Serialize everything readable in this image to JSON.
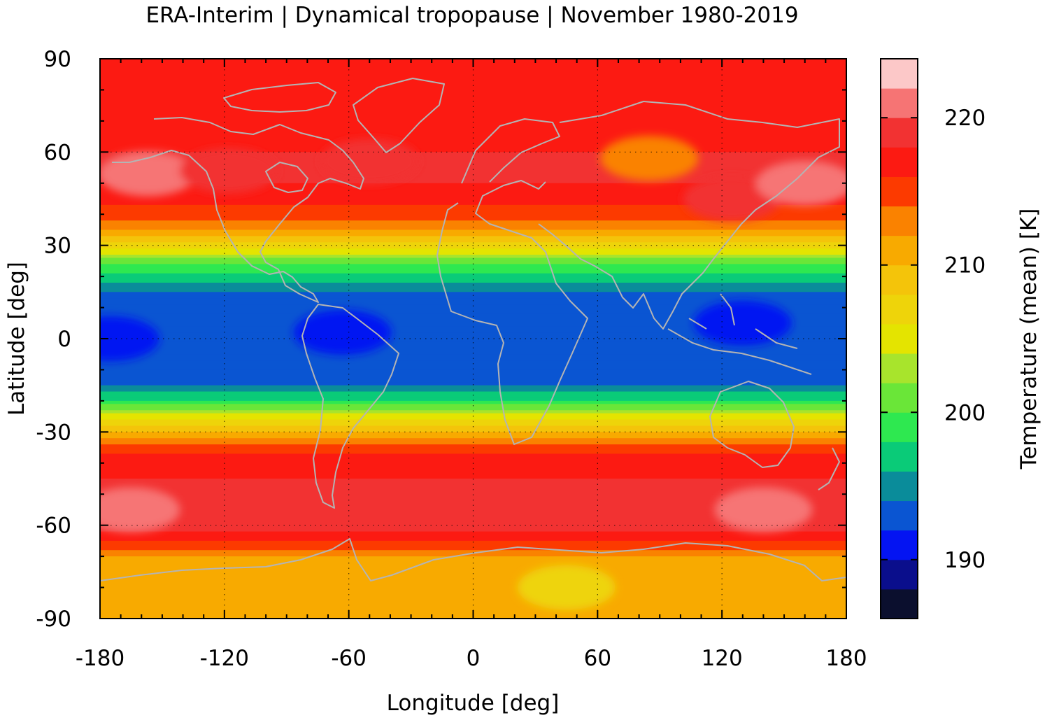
{
  "chart_data": {
    "type": "heatmap",
    "title": "ERA-Interim | Dynamical tropopause | November 1980-2019",
    "xlabel": "Longitude [deg]",
    "ylabel": "Latitude [deg]",
    "colorbar_label": "Temperature (mean) [K]",
    "xlim": [
      -180,
      180
    ],
    "ylim": [
      -90,
      90
    ],
    "x_ticks": [
      -180,
      -120,
      -60,
      0,
      60,
      120,
      180
    ],
    "y_ticks": [
      -90,
      -60,
      -30,
      0,
      30,
      60,
      90
    ],
    "x_tick_labels": [
      "-180",
      "-120",
      "-60",
      "0",
      "60",
      "120",
      "180"
    ],
    "y_tick_labels": [
      "-90",
      "-60",
      "-30",
      "0",
      "30",
      "60",
      "90"
    ],
    "grid": true,
    "coastlines": true,
    "coastline_color": "#b4b4b4",
    "colorbar": {
      "range": [
        186,
        224
      ],
      "ticks": [
        190,
        200,
        210,
        220
      ],
      "tick_labels": [
        "190",
        "200",
        "210",
        "220"
      ],
      "levels": [
        {
          "from": 186,
          "to": 188,
          "color": "#0b0f2e"
        },
        {
          "from": 188,
          "to": 190,
          "color": "#0a0e8c"
        },
        {
          "from": 190,
          "to": 192,
          "color": "#0414f2"
        },
        {
          "from": 192,
          "to": 194,
          "color": "#0a55d2"
        },
        {
          "from": 194,
          "to": 196,
          "color": "#0a8c9a"
        },
        {
          "from": 196,
          "to": 198,
          "color": "#0acb78"
        },
        {
          "from": 198,
          "to": 200,
          "color": "#2ee850"
        },
        {
          "from": 200,
          "to": 202,
          "color": "#6ae638"
        },
        {
          "from": 202,
          "to": 204,
          "color": "#a8e42c"
        },
        {
          "from": 204,
          "to": 206,
          "color": "#e4e400"
        },
        {
          "from": 206,
          "to": 208,
          "color": "#eed40a"
        },
        {
          "from": 208,
          "to": 210,
          "color": "#f4c40a"
        },
        {
          "from": 210,
          "to": 212,
          "color": "#f8aa00"
        },
        {
          "from": 212,
          "to": 214,
          "color": "#fa8200"
        },
        {
          "from": 214,
          "to": 216,
          "color": "#fc3a00"
        },
        {
          "from": 216,
          "to": 218,
          "color": "#fc1a12"
        },
        {
          "from": 218,
          "to": 220,
          "color": "#f23232"
        },
        {
          "from": 220,
          "to": 222,
          "color": "#f67474"
        },
        {
          "from": 222,
          "to": 224,
          "color": "#fcc8c8"
        }
      ]
    },
    "zonal_profile": [
      {
        "lat": 90,
        "value": 216
      },
      {
        "lat": 80,
        "value": 216
      },
      {
        "lat": 70,
        "value": 217
      },
      {
        "lat": 60,
        "value": 218
      },
      {
        "lat": 50,
        "value": 218
      },
      {
        "lat": 40,
        "value": 215
      },
      {
        "lat": 35,
        "value": 212
      },
      {
        "lat": 30,
        "value": 207
      },
      {
        "lat": 25,
        "value": 201
      },
      {
        "lat": 20,
        "value": 197
      },
      {
        "lat": 15,
        "value": 194
      },
      {
        "lat": 10,
        "value": 193
      },
      {
        "lat": 0,
        "value": 192
      },
      {
        "lat": -10,
        "value": 193
      },
      {
        "lat": -15,
        "value": 194
      },
      {
        "lat": -20,
        "value": 198
      },
      {
        "lat": -25,
        "value": 205
      },
      {
        "lat": -30,
        "value": 210
      },
      {
        "lat": -35,
        "value": 215
      },
      {
        "lat": -40,
        "value": 217
      },
      {
        "lat": -50,
        "value": 219
      },
      {
        "lat": -55,
        "value": 220
      },
      {
        "lat": -60,
        "value": 219
      },
      {
        "lat": -65,
        "value": 216
      },
      {
        "lat": -70,
        "value": 212
      },
      {
        "lat": -80,
        "value": 210
      },
      {
        "lat": -90,
        "value": 210
      }
    ],
    "features": [
      {
        "lon": -157,
        "lat": 53,
        "value": 221
      },
      {
        "lon": -118,
        "lat": 54,
        "value": 219
      },
      {
        "lon": -50,
        "lat": 57,
        "value": 219
      },
      {
        "lon": 85,
        "lat": 58,
        "value": 213
      },
      {
        "lon": 125,
        "lat": 45,
        "value": 219
      },
      {
        "lon": 160,
        "lat": 50,
        "value": 221
      },
      {
        "lon": -165,
        "lat": -55,
        "value": 221
      },
      {
        "lon": 140,
        "lat": -55,
        "value": 221
      },
      {
        "lon": -63,
        "lat": 2,
        "value": 191
      },
      {
        "lon": 130,
        "lat": 5,
        "value": 191
      },
      {
        "lon": -175,
        "lat": 0,
        "value": 191
      },
      {
        "lon": 45,
        "lat": -80,
        "value": 207
      }
    ]
  }
}
